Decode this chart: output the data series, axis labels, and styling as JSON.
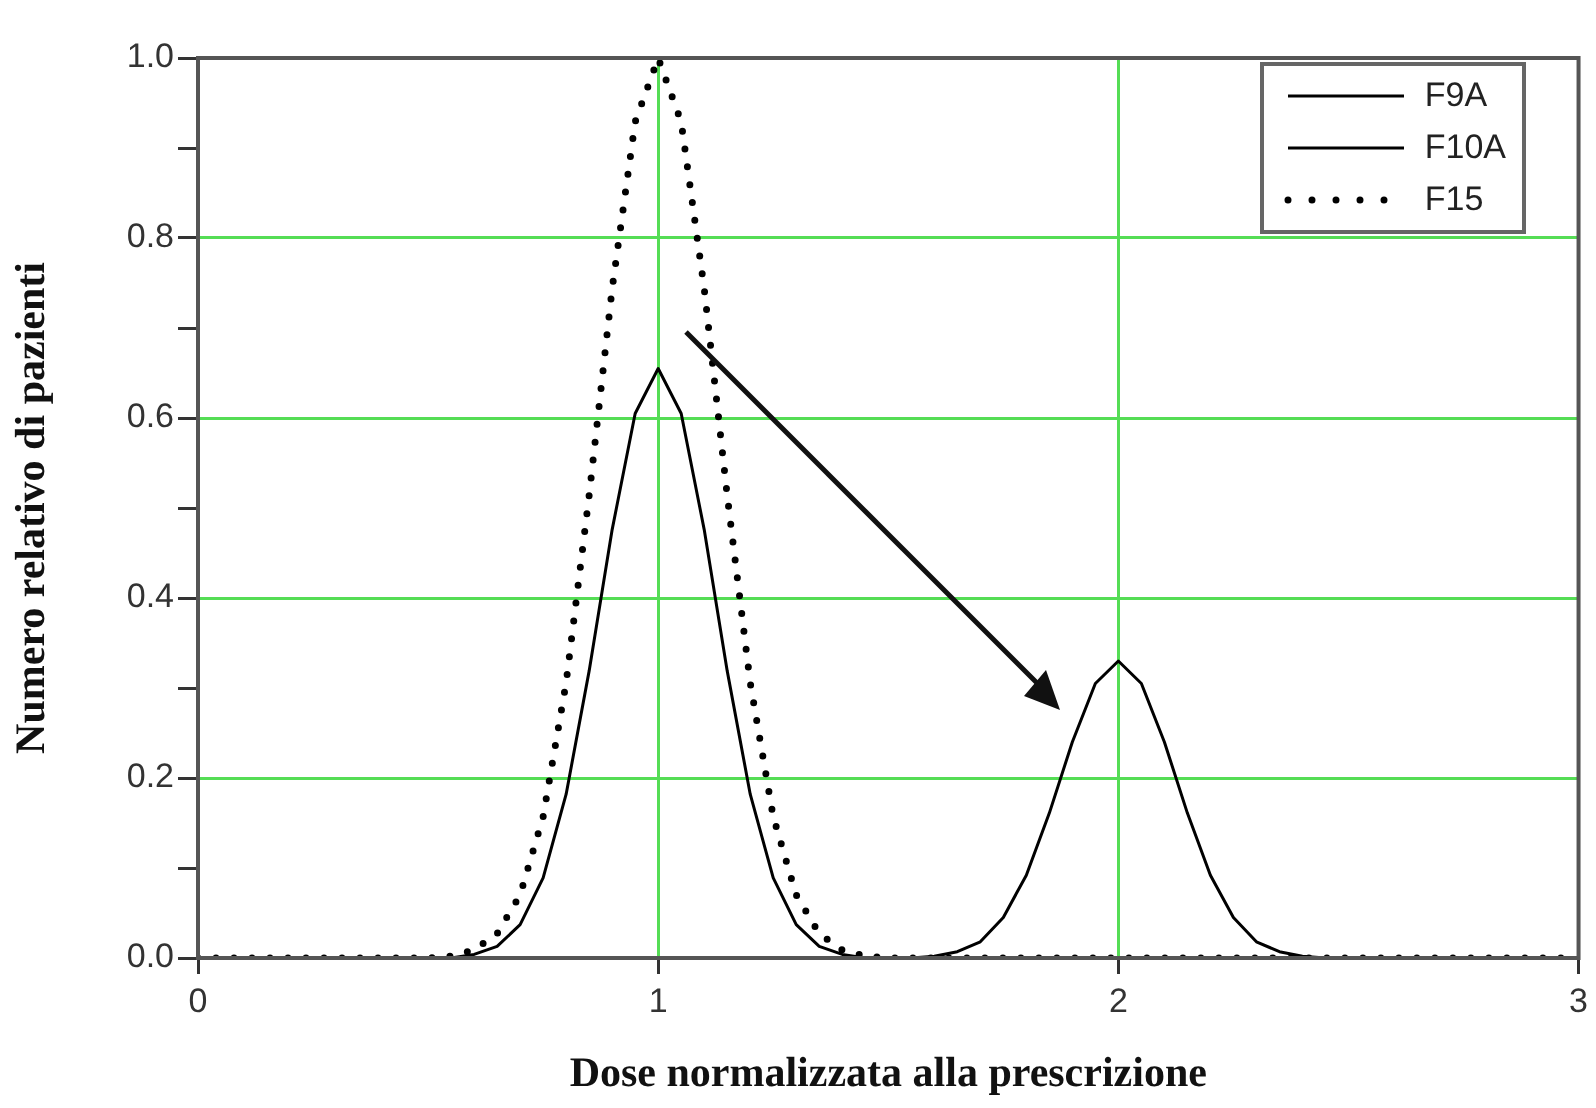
{
  "chart_data": {
    "type": "line",
    "xlabel": "Dose normalizzata alla prescrizione",
    "ylabel": "Numero relativo di pazienti",
    "xlim": [
      0,
      3
    ],
    "xticks": [
      0,
      1,
      2,
      3
    ],
    "ylim": [
      0,
      1
    ],
    "yticks": [
      {
        "value": 0,
        "label": "0.0"
      },
      {
        "value": 0.1,
        "label": null
      },
      {
        "value": 0.2,
        "label": "0.2"
      },
      {
        "value": 0.3,
        "label": null
      },
      {
        "value": 0.4,
        "label": "0.4"
      },
      {
        "value": 0.5,
        "label": null
      },
      {
        "value": 0.6,
        "label": "0.6"
      },
      {
        "value": 0.7,
        "label": null
      },
      {
        "value": 0.8,
        "label": "0.8"
      },
      {
        "value": 0.9,
        "label": null
      },
      {
        "value": 1,
        "label": "1.0"
      }
    ],
    "grid": true,
    "legend": "top right",
    "series": [
      {
        "name": "F9A",
        "color": "#000000",
        "line_style": "solid",
        "x": [
          0,
          0.5,
          0.55,
          0.6,
          0.65,
          0.7,
          0.75,
          0.8,
          0.85,
          0.9,
          0.95,
          1,
          1.05,
          1.1,
          1.15,
          1.2,
          1.25,
          1.3,
          1.35,
          1.4,
          1.45,
          1.5,
          3
        ],
        "values": [
          0,
          0,
          0,
          0.004,
          0.013,
          0.037,
          0.089,
          0.182,
          0.319,
          0.476,
          0.605,
          0.655,
          0.605,
          0.476,
          0.319,
          0.182,
          0.089,
          0.037,
          0.013,
          0.004,
          0,
          0,
          0
        ]
      },
      {
        "name": "F10A",
        "color": "#000000",
        "line_style": "solid",
        "x": [
          0,
          1.5,
          1.55,
          1.6,
          1.65,
          1.7,
          1.75,
          1.8,
          1.85,
          1.9,
          1.95,
          2,
          2.05,
          2.1,
          2.15,
          2.2,
          2.25,
          2.3,
          2.35,
          2.4,
          2.45,
          2.5,
          3
        ],
        "values": [
          0,
          0,
          0,
          0.002,
          0.007,
          0.018,
          0.045,
          0.092,
          0.161,
          0.24,
          0.305,
          0.33,
          0.305,
          0.24,
          0.161,
          0.092,
          0.045,
          0.018,
          0.007,
          0.002,
          0,
          0,
          0
        ]
      },
      {
        "name": "F15",
        "color": "#000000",
        "line_style": "dotted",
        "x": [
          0,
          0.5,
          0.55,
          0.6,
          0.65,
          0.7,
          0.75,
          0.8,
          0.85,
          0.9,
          0.95,
          1,
          1.05,
          1.1,
          1.15,
          1.2,
          1.25,
          1.3,
          1.35,
          1.4,
          1.45,
          1.5,
          3
        ],
        "values": [
          0,
          0,
          0.002,
          0.009,
          0.027,
          0.07,
          0.157,
          0.306,
          0.514,
          0.744,
          0.929,
          1,
          0.929,
          0.744,
          0.514,
          0.306,
          0.157,
          0.07,
          0.027,
          0.009,
          0.002,
          0,
          0
        ]
      }
    ]
  }
}
